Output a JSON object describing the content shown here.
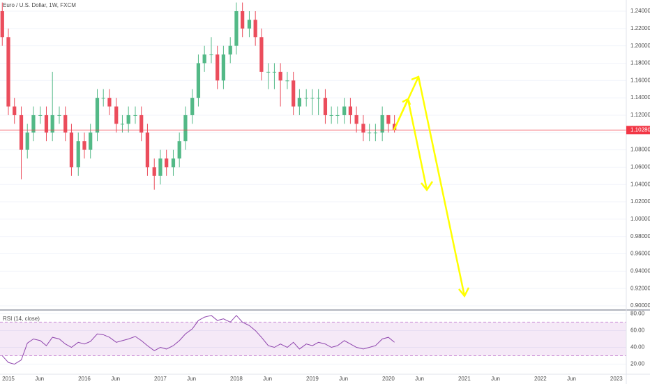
{
  "chart_data": [
    {
      "type": "candlestick",
      "title": "Euro / U.S. Dollar, 1W, FXCM",
      "x": [
        2014.92,
        2015.0,
        2015.08,
        2015.17,
        2015.25,
        2015.33,
        2015.42,
        2015.5,
        2015.58,
        2015.67,
        2015.75,
        2015.83,
        2015.92,
        2016.0,
        2016.08,
        2016.17,
        2016.25,
        2016.33,
        2016.42,
        2016.5,
        2016.58,
        2016.67,
        2016.75,
        2016.83,
        2016.92,
        2017.0,
        2017.08,
        2017.17,
        2017.25,
        2017.33,
        2017.42,
        2017.5,
        2017.58,
        2017.67,
        2017.75,
        2017.83,
        2017.92,
        2018.0,
        2018.08,
        2018.17,
        2018.25,
        2018.33,
        2018.42,
        2018.5,
        2018.58,
        2018.67,
        2018.75,
        2018.83,
        2018.92,
        2019.0,
        2019.08,
        2019.17,
        2019.25,
        2019.33,
        2019.42,
        2019.5,
        2019.58,
        2019.67,
        2019.75,
        2019.83,
        2019.92,
        2020.0,
        2020.08
      ],
      "open": [
        1.24,
        1.21,
        1.13,
        1.12,
        1.08,
        1.1,
        1.12,
        1.12,
        1.1,
        1.12,
        1.12,
        1.1,
        1.06,
        1.09,
        1.08,
        1.1,
        1.14,
        1.14,
        1.13,
        1.11,
        1.11,
        1.12,
        1.12,
        1.1,
        1.06,
        1.05,
        1.07,
        1.06,
        1.07,
        1.09,
        1.12,
        1.14,
        1.18,
        1.19,
        1.19,
        1.16,
        1.19,
        1.2,
        1.24,
        1.22,
        1.23,
        1.21,
        1.17,
        1.17,
        1.17,
        1.16,
        1.16,
        1.13,
        1.14,
        1.14,
        1.14,
        1.14,
        1.12,
        1.12,
        1.12,
        1.13,
        1.12,
        1.11,
        1.1,
        1.1,
        1.1,
        1.12,
        1.11
      ],
      "high": [
        1.25,
        1.22,
        1.14,
        1.13,
        1.11,
        1.13,
        1.13,
        1.13,
        1.17,
        1.13,
        1.13,
        1.11,
        1.1,
        1.1,
        1.11,
        1.15,
        1.15,
        1.15,
        1.14,
        1.12,
        1.13,
        1.13,
        1.13,
        1.11,
        1.07,
        1.08,
        1.08,
        1.08,
        1.1,
        1.13,
        1.15,
        1.19,
        1.2,
        1.21,
        1.2,
        1.2,
        1.21,
        1.25,
        1.25,
        1.24,
        1.24,
        1.22,
        1.18,
        1.18,
        1.18,
        1.17,
        1.17,
        1.15,
        1.15,
        1.15,
        1.15,
        1.15,
        1.13,
        1.13,
        1.14,
        1.14,
        1.13,
        1.12,
        1.11,
        1.11,
        1.13,
        1.12,
        1.12
      ],
      "low": [
        1.2,
        1.12,
        1.11,
        1.046,
        1.07,
        1.09,
        1.11,
        1.09,
        1.09,
        1.11,
        1.09,
        1.05,
        1.05,
        1.07,
        1.07,
        1.09,
        1.13,
        1.12,
        1.1,
        1.1,
        1.1,
        1.11,
        1.09,
        1.05,
        1.034,
        1.04,
        1.05,
        1.05,
        1.06,
        1.08,
        1.11,
        1.13,
        1.17,
        1.18,
        1.15,
        1.15,
        1.18,
        1.19,
        1.21,
        1.21,
        1.2,
        1.16,
        1.15,
        1.15,
        1.13,
        1.15,
        1.12,
        1.12,
        1.13,
        1.12,
        1.12,
        1.11,
        1.11,
        1.11,
        1.11,
        1.11,
        1.1,
        1.09,
        1.09,
        1.09,
        1.09,
        1.1,
        1.1
      ],
      "close": [
        1.21,
        1.13,
        1.12,
        1.08,
        1.1,
        1.12,
        1.12,
        1.1,
        1.12,
        1.12,
        1.1,
        1.06,
        1.09,
        1.08,
        1.1,
        1.14,
        1.14,
        1.13,
        1.11,
        1.11,
        1.12,
        1.12,
        1.1,
        1.06,
        1.05,
        1.07,
        1.06,
        1.07,
        1.09,
        1.12,
        1.14,
        1.18,
        1.19,
        1.19,
        1.16,
        1.19,
        1.2,
        1.24,
        1.22,
        1.23,
        1.21,
        1.17,
        1.17,
        1.17,
        1.16,
        1.16,
        1.13,
        1.14,
        1.14,
        1.14,
        1.14,
        1.12,
        1.12,
        1.12,
        1.13,
        1.12,
        1.11,
        1.1,
        1.1,
        1.1,
        1.12,
        1.11,
        1.103
      ],
      "up_color": "#53b987",
      "down_color": "#eb4d5c",
      "xlim": [
        2014.89,
        2023.13
      ],
      "xticks": [
        {
          "value": 2015.0,
          "label": "2015"
        },
        {
          "value": 2015.41,
          "label": "Jun"
        },
        {
          "value": 2016.0,
          "label": "2016"
        },
        {
          "value": 2016.41,
          "label": "Jun"
        },
        {
          "value": 2017.0,
          "label": "2017"
        },
        {
          "value": 2017.41,
          "label": "Jun"
        },
        {
          "value": 2018.0,
          "label": "2018"
        },
        {
          "value": 2018.41,
          "label": "Jun"
        },
        {
          "value": 2019.0,
          "label": "2019"
        },
        {
          "value": 2019.41,
          "label": "Jun"
        },
        {
          "value": 2020.0,
          "label": "2020"
        },
        {
          "value": 2020.41,
          "label": "Jun"
        },
        {
          "value": 2021.0,
          "label": "2021"
        },
        {
          "value": 2021.41,
          "label": "Jun"
        },
        {
          "value": 2022.0,
          "label": "2022"
        },
        {
          "value": 2022.41,
          "label": "Jun"
        },
        {
          "value": 2023.0,
          "label": "2023"
        }
      ],
      "ylim": [
        0.9,
        1.24
      ],
      "yticks": [
        {
          "value": 0.9,
          "label": "0.90000"
        },
        {
          "value": 0.92,
          "label": "0.92000"
        },
        {
          "value": 0.94,
          "label": "0.94000"
        },
        {
          "value": 0.96,
          "label": "0.96000"
        },
        {
          "value": 0.98,
          "label": "0.98000"
        },
        {
          "value": 1.0,
          "label": "1.00000"
        },
        {
          "value": 1.02,
          "label": "1.02000"
        },
        {
          "value": 1.04,
          "label": "1.04000"
        },
        {
          "value": 1.06,
          "label": "1.06000"
        },
        {
          "value": 1.08,
          "label": "1.08000"
        },
        {
          "value": 1.1,
          "label": "1.10000"
        },
        {
          "value": 1.12,
          "label": "1.12000"
        },
        {
          "value": 1.14,
          "label": "1.14000"
        },
        {
          "value": 1.16,
          "label": "1.16000"
        },
        {
          "value": 1.18,
          "label": "1.18000"
        },
        {
          "value": 1.2,
          "label": "1.20000"
        },
        {
          "value": 1.22,
          "label": "1.22000"
        },
        {
          "value": 1.24,
          "label": "1.24000"
        }
      ],
      "price_line": {
        "value": 1.1028,
        "label": "1.10280",
        "color": "#f23645"
      },
      "grid": true
    },
    {
      "type": "line",
      "title": "RSI (14, close)",
      "x": [
        2014.92,
        2015.0,
        2015.08,
        2015.17,
        2015.25,
        2015.33,
        2015.42,
        2015.5,
        2015.58,
        2015.67,
        2015.75,
        2015.83,
        2015.92,
        2016.0,
        2016.08,
        2016.17,
        2016.25,
        2016.33,
        2016.42,
        2016.5,
        2016.58,
        2016.67,
        2016.75,
        2016.83,
        2016.92,
        2017.0,
        2017.08,
        2017.17,
        2017.25,
        2017.33,
        2017.42,
        2017.5,
        2017.58,
        2017.67,
        2017.75,
        2017.83,
        2017.92,
        2018.0,
        2018.08,
        2018.17,
        2018.25,
        2018.33,
        2018.42,
        2018.5,
        2018.58,
        2018.67,
        2018.75,
        2018.83,
        2018.92,
        2019.0,
        2019.08,
        2019.17,
        2019.25,
        2019.33,
        2019.42,
        2019.5,
        2019.58,
        2019.67,
        2019.75,
        2019.83,
        2019.92,
        2020.0,
        2020.08
      ],
      "values": [
        30,
        22,
        20,
        25,
        45,
        50,
        48,
        42,
        52,
        50,
        44,
        40,
        46,
        44,
        47,
        56,
        55,
        52,
        46,
        48,
        50,
        53,
        48,
        42,
        36,
        40,
        38,
        42,
        48,
        56,
        62,
        72,
        76,
        78,
        72,
        74,
        70,
        78,
        70,
        66,
        60,
        52,
        42,
        40,
        44,
        40,
        46,
        38,
        44,
        42,
        46,
        44,
        40,
        42,
        48,
        44,
        40,
        38,
        40,
        42,
        50,
        52,
        46
      ],
      "color": "#8e44ad",
      "bands": [
        30,
        70
      ],
      "xlim": [
        2014.89,
        2023.13
      ],
      "ylim": [
        8,
        82
      ],
      "yticks": [
        {
          "value": 20,
          "label": "20.00"
        },
        {
          "value": 40,
          "label": "40.00"
        },
        {
          "value": 60,
          "label": "60.00"
        },
        {
          "value": 80,
          "label": "80.00"
        }
      ]
    }
  ]
}
